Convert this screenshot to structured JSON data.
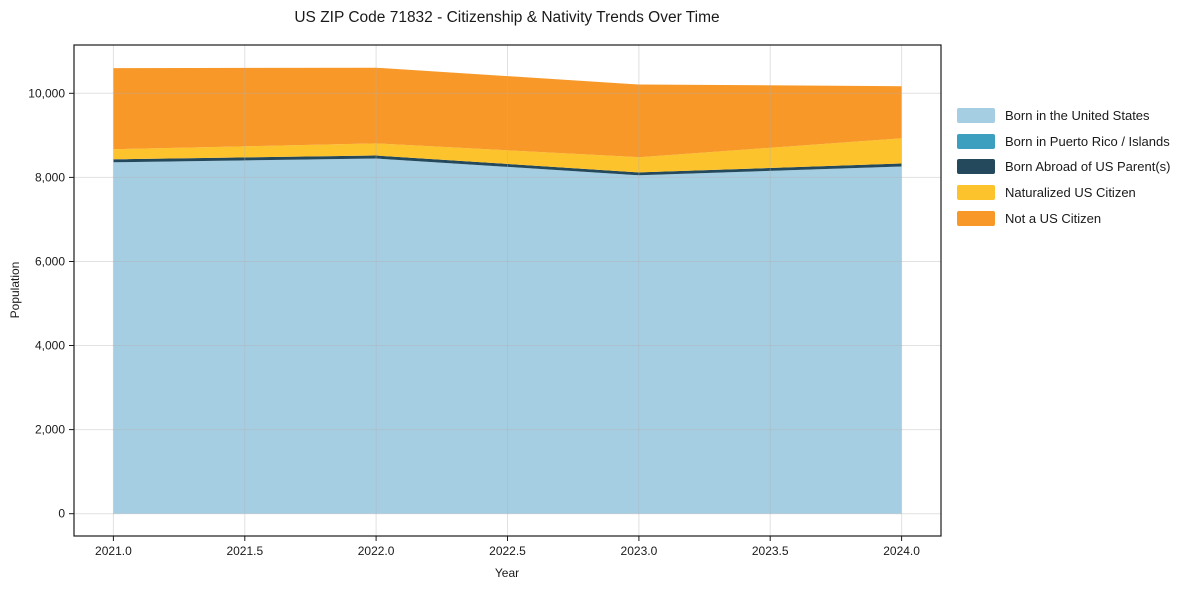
{
  "figure": {
    "background": "#ffffff",
    "text_color": "#1a1a1a"
  },
  "chart_data": {
    "type": "area",
    "stacked": true,
    "title": "US ZIP Code 71832 - Citizenship & Nativity Trends Over Time",
    "xlabel": "Year",
    "ylabel": "Population",
    "x": [
      2021,
      2022,
      2023,
      2024
    ],
    "series": [
      {
        "name": "Born in the United States",
        "color": "#a6cee3",
        "values": [
          8360,
          8450,
          8050,
          8260
        ]
      },
      {
        "name": "Born in Puerto Rico / Islands",
        "color": "#3d9fc0",
        "values": [
          0,
          0,
          0,
          0
        ]
      },
      {
        "name": "Born Abroad of US Parent(s)",
        "color": "#25495c",
        "values": [
          70,
          70,
          70,
          70
        ]
      },
      {
        "name": "Naturalized US Citizen",
        "color": "#fcc32d",
        "values": [
          240,
          290,
          360,
          600
        ]
      },
      {
        "name": "Not a US Citizen",
        "color": "#f89828",
        "values": [
          1930,
          1800,
          1730,
          1240
        ]
      }
    ],
    "stack_totals": [
      10600,
      10610,
      10210,
      10170
    ],
    "xticks": [
      2021.0,
      2021.5,
      2022.0,
      2022.5,
      2023.0,
      2023.5,
      2024.0
    ],
    "xtick_labels": [
      "2021.0",
      "2021.5",
      "2022.0",
      "2022.5",
      "2023.0",
      "2023.5",
      "2024.0"
    ],
    "yticks": [
      0,
      2000,
      4000,
      6000,
      8000,
      10000
    ],
    "ytick_labels": [
      "0",
      "2,000",
      "4,000",
      "6,000",
      "8,000",
      "10,000"
    ],
    "xlim": [
      2020.85,
      2024.15
    ],
    "ylim": [
      -531,
      11150
    ],
    "grid": true,
    "legend_position": "right of plot, no border"
  }
}
